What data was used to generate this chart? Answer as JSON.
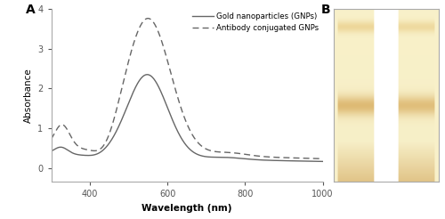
{
  "xlabel": "Wavelength (nm)",
  "ylabel": "Absorbance",
  "xlim": [
    300,
    1000
  ],
  "ylim": [
    -0.35,
    4.0
  ],
  "yticks": [
    0,
    1,
    2,
    3,
    4
  ],
  "xticks": [
    400,
    600,
    800,
    1000
  ],
  "legend_gnp": "Gold nanoparticles (GNPs)",
  "legend_ab": "Antibody conjugated GNPs",
  "line_color": "#666666",
  "background": "#ffffff",
  "spine_color": "#aaaaaa"
}
